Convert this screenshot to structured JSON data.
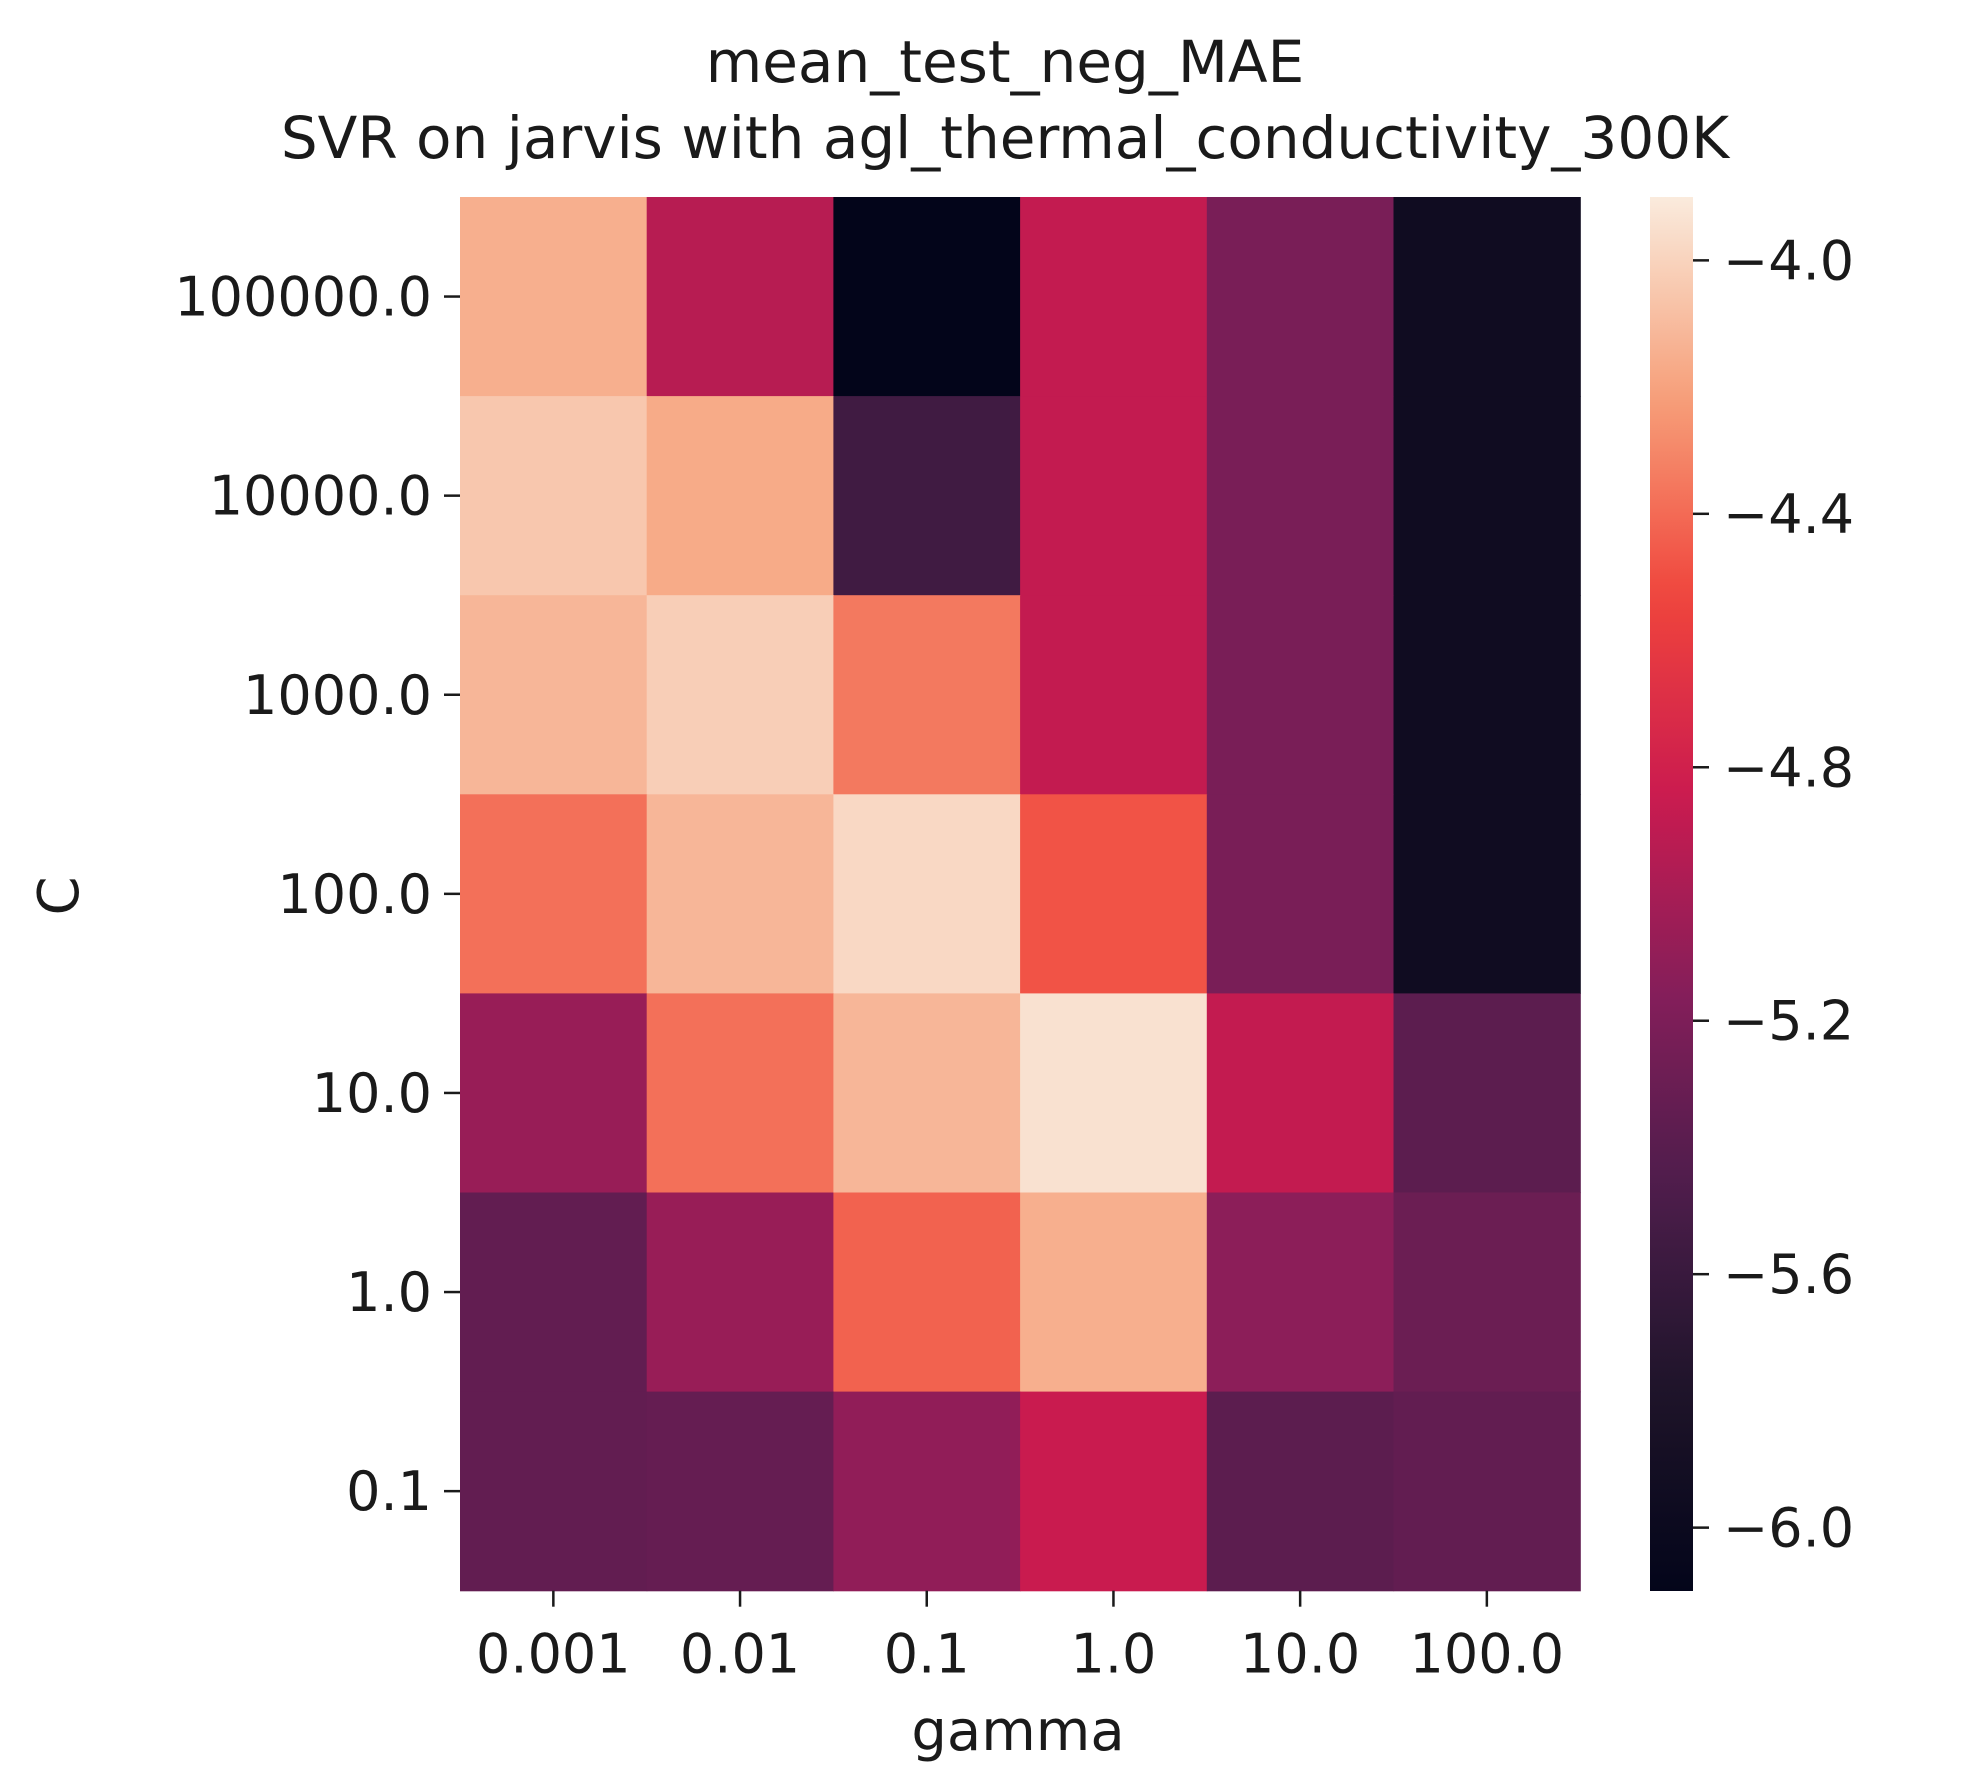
{
  "chart_data": {
    "type": "heatmap",
    "title": "mean_test_neg_MAE",
    "subtitle": "SVR on jarvis with agl_thermal_conductivity_300K",
    "xlabel": "gamma",
    "ylabel": "C",
    "x_categories": [
      "0.001",
      "0.01",
      "0.1",
      "1.0",
      "10.0",
      "100.0"
    ],
    "y_categories": [
      "100000.0",
      "10000.0",
      "1000.0",
      "100.0",
      "10.0",
      "1.0",
      "0.1"
    ],
    "values": [
      [
        -4.15,
        -4.93,
        -6.1,
        -4.88,
        -5.22,
        -5.95
      ],
      [
        -4.05,
        -4.17,
        -5.55,
        -4.88,
        -5.22,
        -5.95
      ],
      [
        -4.12,
        -4.02,
        -4.35,
        -4.88,
        -5.22,
        -5.95
      ],
      [
        -4.38,
        -4.12,
        -3.98,
        -4.48,
        -5.22,
        -5.95
      ],
      [
        -5.07,
        -4.38,
        -4.12,
        -3.94,
        -4.88,
        -5.38
      ],
      [
        -5.35,
        -5.07,
        -4.43,
        -4.15,
        -5.12,
        -5.3
      ],
      [
        -5.35,
        -5.33,
        -5.1,
        -4.85,
        -5.38,
        -5.35
      ]
    ],
    "colorbar": {
      "vmin": -6.1,
      "vmax": -3.9,
      "ticks": [
        -4.0,
        -4.4,
        -4.8,
        -5.2,
        -5.6,
        -6.0
      ],
      "tick_labels": [
        "−4.0",
        "−4.4",
        "−4.8",
        "−5.2",
        "−5.6",
        "−6.0"
      ],
      "colormap": "rocket",
      "colormap_stops": [
        "#03051a",
        "#1e1429",
        "#4c1d4b",
        "#841e5a",
        "#cb1b4f",
        "#f0453c",
        "#f6a07a",
        "#faebdd"
      ]
    },
    "grid": false,
    "legend": "colorbar-right"
  }
}
